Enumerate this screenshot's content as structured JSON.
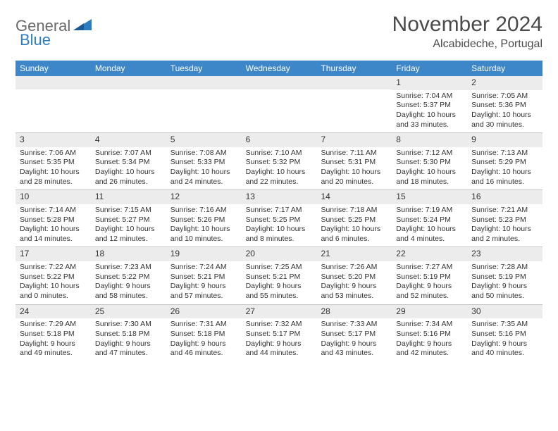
{
  "logo": {
    "general": "General",
    "blue": "Blue"
  },
  "title": "November 2024",
  "location": "Alcabideche, Portugal",
  "colors": {
    "header_bg": "#3d87c9",
    "daynum_bg": "#ececec",
    "border": "#c8c8c8",
    "text": "#333333"
  },
  "weekdays": [
    "Sunday",
    "Monday",
    "Tuesday",
    "Wednesday",
    "Thursday",
    "Friday",
    "Saturday"
  ],
  "weeks": [
    [
      null,
      null,
      null,
      null,
      null,
      {
        "d": "1",
        "sr": "7:04 AM",
        "ss": "5:37 PM",
        "dl": "10 hours and 33 minutes."
      },
      {
        "d": "2",
        "sr": "7:05 AM",
        "ss": "5:36 PM",
        "dl": "10 hours and 30 minutes."
      }
    ],
    [
      {
        "d": "3",
        "sr": "7:06 AM",
        "ss": "5:35 PM",
        "dl": "10 hours and 28 minutes."
      },
      {
        "d": "4",
        "sr": "7:07 AM",
        "ss": "5:34 PM",
        "dl": "10 hours and 26 minutes."
      },
      {
        "d": "5",
        "sr": "7:08 AM",
        "ss": "5:33 PM",
        "dl": "10 hours and 24 minutes."
      },
      {
        "d": "6",
        "sr": "7:10 AM",
        "ss": "5:32 PM",
        "dl": "10 hours and 22 minutes."
      },
      {
        "d": "7",
        "sr": "7:11 AM",
        "ss": "5:31 PM",
        "dl": "10 hours and 20 minutes."
      },
      {
        "d": "8",
        "sr": "7:12 AM",
        "ss": "5:30 PM",
        "dl": "10 hours and 18 minutes."
      },
      {
        "d": "9",
        "sr": "7:13 AM",
        "ss": "5:29 PM",
        "dl": "10 hours and 16 minutes."
      }
    ],
    [
      {
        "d": "10",
        "sr": "7:14 AM",
        "ss": "5:28 PM",
        "dl": "10 hours and 14 minutes."
      },
      {
        "d": "11",
        "sr": "7:15 AM",
        "ss": "5:27 PM",
        "dl": "10 hours and 12 minutes."
      },
      {
        "d": "12",
        "sr": "7:16 AM",
        "ss": "5:26 PM",
        "dl": "10 hours and 10 minutes."
      },
      {
        "d": "13",
        "sr": "7:17 AM",
        "ss": "5:25 PM",
        "dl": "10 hours and 8 minutes."
      },
      {
        "d": "14",
        "sr": "7:18 AM",
        "ss": "5:25 PM",
        "dl": "10 hours and 6 minutes."
      },
      {
        "d": "15",
        "sr": "7:19 AM",
        "ss": "5:24 PM",
        "dl": "10 hours and 4 minutes."
      },
      {
        "d": "16",
        "sr": "7:21 AM",
        "ss": "5:23 PM",
        "dl": "10 hours and 2 minutes."
      }
    ],
    [
      {
        "d": "17",
        "sr": "7:22 AM",
        "ss": "5:22 PM",
        "dl": "10 hours and 0 minutes."
      },
      {
        "d": "18",
        "sr": "7:23 AM",
        "ss": "5:22 PM",
        "dl": "9 hours and 58 minutes."
      },
      {
        "d": "19",
        "sr": "7:24 AM",
        "ss": "5:21 PM",
        "dl": "9 hours and 57 minutes."
      },
      {
        "d": "20",
        "sr": "7:25 AM",
        "ss": "5:21 PM",
        "dl": "9 hours and 55 minutes."
      },
      {
        "d": "21",
        "sr": "7:26 AM",
        "ss": "5:20 PM",
        "dl": "9 hours and 53 minutes."
      },
      {
        "d": "22",
        "sr": "7:27 AM",
        "ss": "5:19 PM",
        "dl": "9 hours and 52 minutes."
      },
      {
        "d": "23",
        "sr": "7:28 AM",
        "ss": "5:19 PM",
        "dl": "9 hours and 50 minutes."
      }
    ],
    [
      {
        "d": "24",
        "sr": "7:29 AM",
        "ss": "5:18 PM",
        "dl": "9 hours and 49 minutes."
      },
      {
        "d": "25",
        "sr": "7:30 AM",
        "ss": "5:18 PM",
        "dl": "9 hours and 47 minutes."
      },
      {
        "d": "26",
        "sr": "7:31 AM",
        "ss": "5:18 PM",
        "dl": "9 hours and 46 minutes."
      },
      {
        "d": "27",
        "sr": "7:32 AM",
        "ss": "5:17 PM",
        "dl": "9 hours and 44 minutes."
      },
      {
        "d": "28",
        "sr": "7:33 AM",
        "ss": "5:17 PM",
        "dl": "9 hours and 43 minutes."
      },
      {
        "d": "29",
        "sr": "7:34 AM",
        "ss": "5:16 PM",
        "dl": "9 hours and 42 minutes."
      },
      {
        "d": "30",
        "sr": "7:35 AM",
        "ss": "5:16 PM",
        "dl": "9 hours and 40 minutes."
      }
    ]
  ],
  "labels": {
    "sunrise": "Sunrise: ",
    "sunset": "Sunset: ",
    "daylight": "Daylight: "
  }
}
